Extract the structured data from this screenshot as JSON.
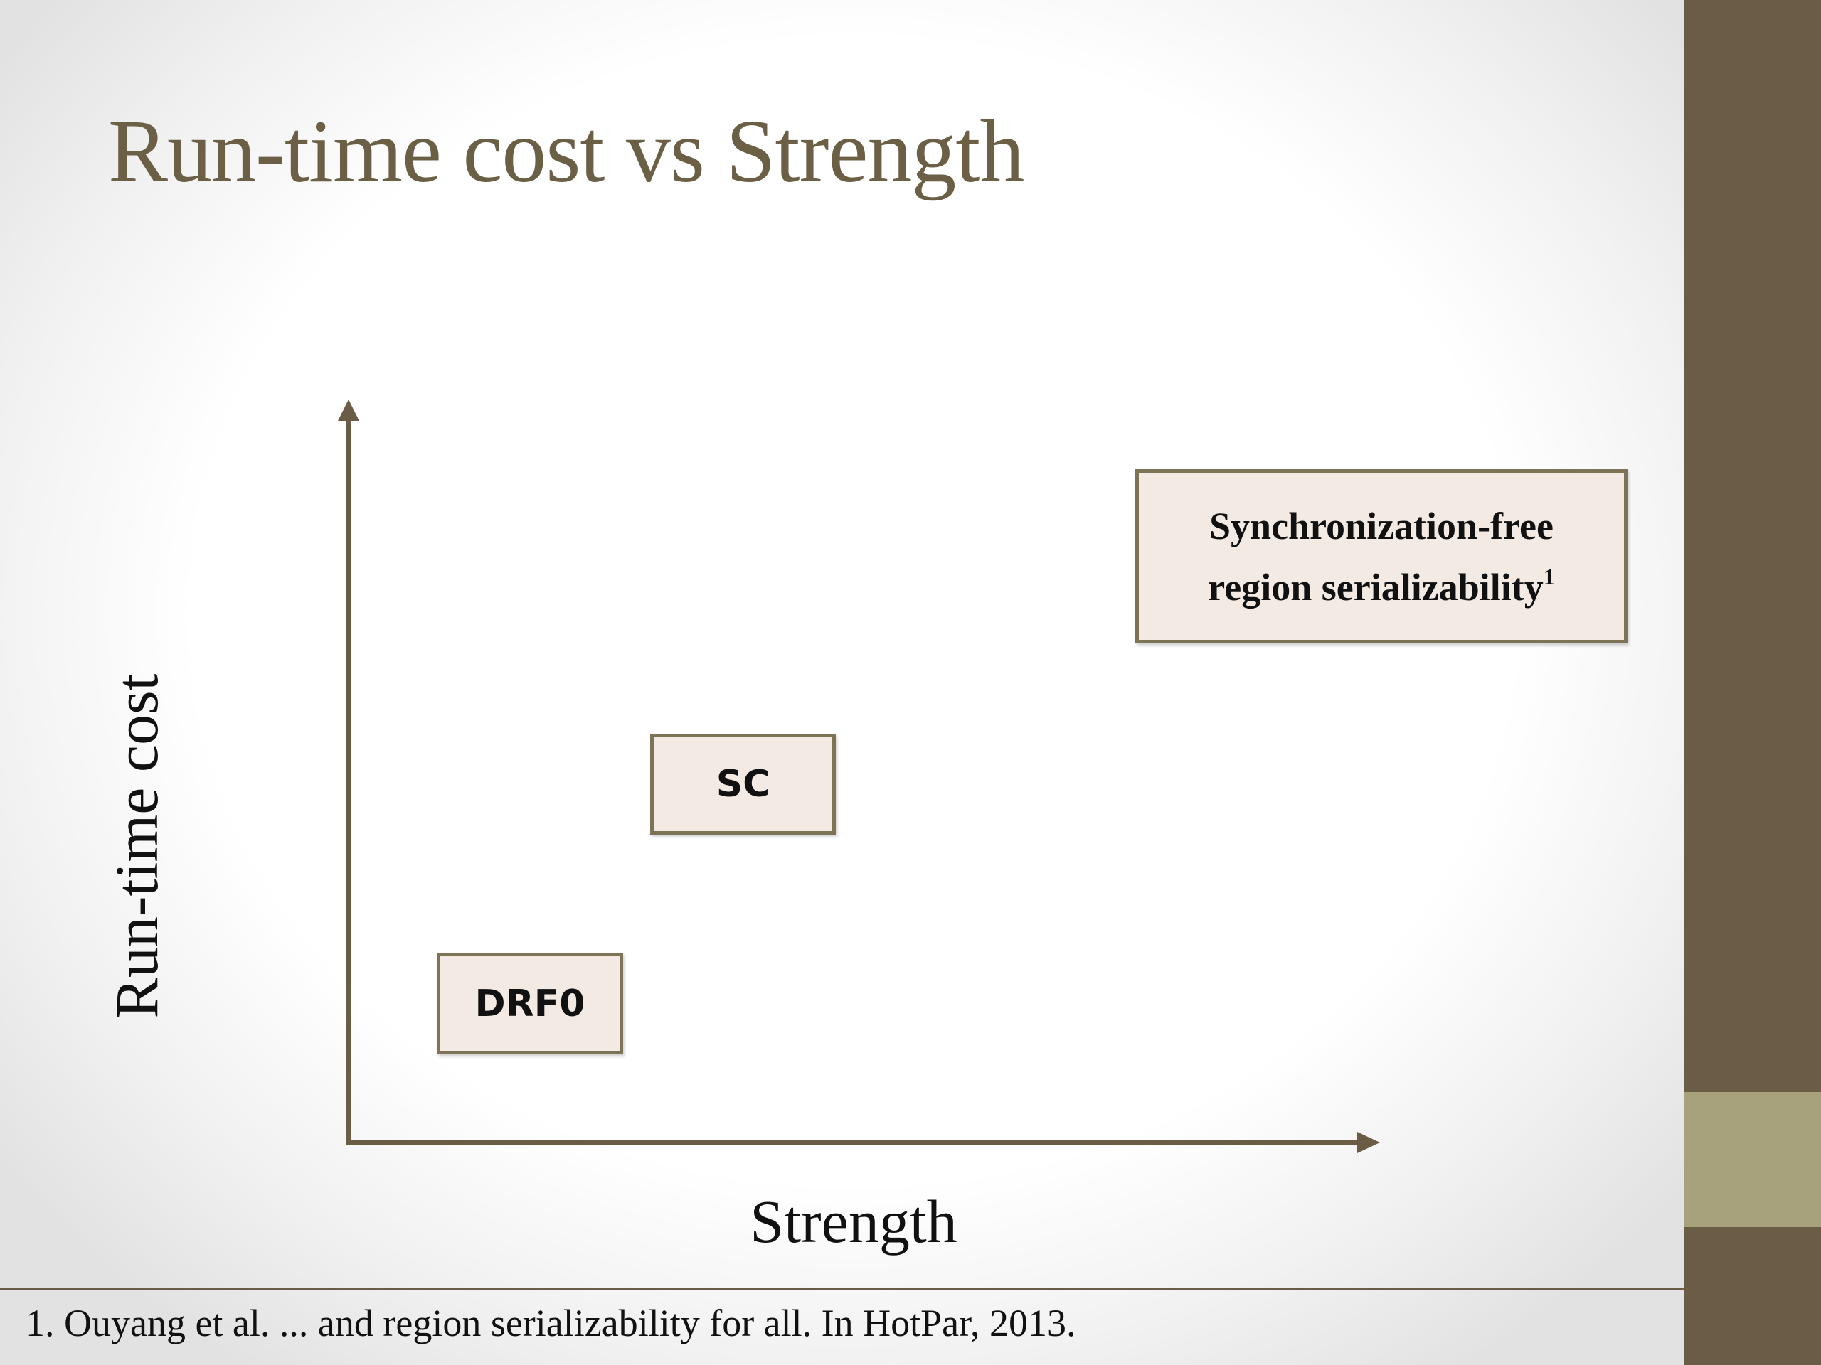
{
  "slide": {
    "title": "Run-time cost vs Strength",
    "colors": {
      "title": "#6b5f45",
      "axis": "#6b5d45",
      "box_fill": "#f3ebe3",
      "box_border": "#7d7458",
      "side_bar": "#6b5d45",
      "side_accent": "#a7a27c"
    }
  },
  "diagram": {
    "y_axis_label": "Run-time cost",
    "x_axis_label": "Strength",
    "boxes": {
      "drf0": {
        "label": "DRF0"
      },
      "sc": {
        "label": "SC"
      },
      "sfrs": {
        "line1": "Synchronization-free",
        "line2": "region serializability",
        "superscript": "1"
      }
    }
  },
  "footnote": {
    "text": "1. Ouyang et al. ... and region serializability for all. In HotPar, 2013."
  }
}
